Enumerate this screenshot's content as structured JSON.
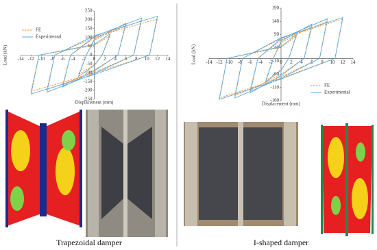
{
  "chart_data": [
    {
      "type": "line",
      "xlabel": "Displacement (mm)",
      "ylabel": "Load (kN)",
      "xlim": [
        -14,
        14
      ],
      "xticks": [
        -14,
        -12,
        -10,
        -8,
        -6,
        -4,
        -2,
        0,
        2,
        4,
        6,
        8,
        10,
        12,
        14
      ],
      "ylim": [
        -250,
        250
      ],
      "yticks": [
        -250,
        -200,
        -150,
        -100,
        -50,
        0,
        50,
        100,
        150,
        200,
        250
      ],
      "legend": "upper left",
      "series": [
        {
          "name": "FE",
          "color": "#f08a2a",
          "line_style": "dashed",
          "x": [
            0,
            3,
            1.5,
            0,
            -3,
            -1.5,
            0,
            6,
            4.5,
            0,
            -6,
            -4.5,
            0,
            9,
            7.5,
            0,
            -9,
            -7.5,
            0,
            12,
            10.5,
            0,
            -12,
            -10.5
          ],
          "values": [
            55,
            110,
            0,
            -55,
            -110,
            0,
            85,
            170,
            0,
            -85,
            -170,
            0,
            98,
            195,
            0,
            -98,
            -195,
            0,
            102,
            205,
            0,
            -102,
            -205,
            0
          ]
        },
        {
          "name": "Experimental",
          "color": "#5aa9e0",
          "line_style": "solid",
          "x": [
            0,
            3,
            1.5,
            0,
            -3,
            -1.5,
            0,
            6,
            4.5,
            0,
            -6,
            -4.5,
            0,
            9,
            7.5,
            0,
            -9,
            -7.5,
            0,
            12,
            10.5,
            0,
            -12,
            -10.5
          ],
          "values": [
            60,
            120,
            0,
            -60,
            -120,
            0,
            90,
            180,
            0,
            -90,
            -180,
            0,
            105,
            210,
            0,
            -105,
            -210,
            0,
            110,
            220,
            0,
            -110,
            -220,
            0
          ]
        }
      ]
    },
    {
      "type": "line",
      "xlabel": "Displacement (mm)",
      "ylabel": "Load (kN)",
      "xlim": [
        -14,
        14
      ],
      "xticks": [
        -14,
        -12,
        -10,
        -8,
        -6,
        -4,
        -2,
        0,
        2,
        4,
        6,
        8,
        10,
        12,
        14
      ],
      "ylim": [
        -160,
        190
      ],
      "yticks": [
        -160,
        -110,
        -60,
        -10,
        40,
        90,
        140,
        190
      ],
      "legend": "lower right",
      "series": [
        {
          "name": "FE",
          "color": "#f08a2a",
          "line_style": "dashed",
          "x": [
            0,
            3,
            1.5,
            0,
            -3,
            -1.5,
            0,
            6,
            4.5,
            0,
            -6,
            -4.5,
            0,
            9,
            7.5,
            0,
            -9,
            -7.5,
            0,
            12,
            10.5,
            0,
            -12,
            -10.5
          ],
          "values": [
            42,
            85,
            0,
            -42,
            -85,
            0,
            60,
            120,
            0,
            -60,
            -120,
            0,
            70,
            140,
            0,
            -70,
            -140,
            0,
            75,
            150,
            0,
            -75,
            -150,
            0
          ]
        },
        {
          "name": "Experimental",
          "color": "#5aa9e0",
          "line_style": "solid",
          "x": [
            0,
            3,
            1.5,
            0,
            -3,
            -1.5,
            0,
            6,
            4.5,
            0,
            -6,
            -4.5,
            0,
            9,
            7.5,
            0,
            -9,
            -7.5,
            0,
            12,
            10.5,
            0,
            -12,
            -10.5
          ],
          "values": [
            45,
            90,
            0,
            -45,
            -90,
            0,
            65,
            130,
            0,
            -65,
            -130,
            0,
            75,
            150,
            0,
            -75,
            -150,
            0,
            78,
            155,
            0,
            -78,
            -155,
            0
          ]
        }
      ]
    }
  ],
  "figure": {
    "captions": [
      "Trapezoidal damper",
      "I-shaped damper"
    ]
  }
}
